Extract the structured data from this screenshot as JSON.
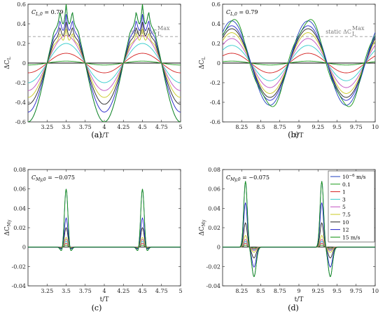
{
  "chart_data": [
    {
      "type": "line",
      "panel_label": "(a)",
      "annotation": "C_{L,0} = 0.79",
      "annotation_text": "C",
      "annotation_sub": "L,0",
      "annotation_value": " = 0.79",
      "ref_label": "static ΔC",
      "ref_sup": "Max",
      "ref_sub": "L",
      "ref_y": 0.27,
      "xlabel": "t/T",
      "ylabel": "ΔC",
      "ylabel_sub": "L",
      "xlim": [
        3.0,
        5.0
      ],
      "ylim": [
        -0.6,
        0.6
      ],
      "xticks": [
        3.25,
        3.5,
        3.75,
        4,
        4.25,
        4.5,
        4.75,
        5
      ],
      "xticklabels": [
        "3.25",
        "3.5",
        "3.75",
        "4",
        "4.25",
        "4.5",
        "4.75",
        "5"
      ],
      "yticks": [
        -0.6,
        -0.4,
        -0.2,
        0,
        0.2,
        0.4,
        0.6
      ],
      "yticklabels": [
        "-0.6",
        "-0.4",
        "-0.2",
        "0",
        "0.2",
        "0.4",
        "0.6"
      ],
      "series_amplitudes": [
        0.0,
        0.6,
        0.02,
        0.1,
        0.2,
        0.28,
        0.35,
        0.42,
        0.5,
        0.6
      ],
      "phase_center": 3.5,
      "ripple": true
    },
    {
      "type": "line",
      "panel_label": "(b)",
      "annotation_text": "C",
      "annotation_sub": "L,0",
      "annotation_value": " = 0.79",
      "ref_label": "static ΔC",
      "ref_sup": "Max",
      "ref_sub": "L",
      "ref_y": 0.27,
      "xlabel": "",
      "ylabel": "ΔC",
      "ylabel_sub": "L",
      "xlim": [
        8.0,
        10.0
      ],
      "ylim": [
        -0.6,
        0.6
      ],
      "xticks": [
        8.25,
        8.5,
        8.75,
        9,
        9.25,
        9.5,
        9.75,
        10
      ],
      "xticklabels": [
        "8.25",
        "8.5",
        "8.75",
        "9",
        "9.25",
        "9.5",
        "9.75",
        "10"
      ],
      "yticks": [
        -0.6,
        -0.4,
        -0.2,
        0,
        0.2,
        0.4,
        0.6
      ],
      "yticklabels": [
        "-0.6",
        "-0.4",
        "-0.2",
        "0",
        "0.2",
        "0.4",
        "0.6"
      ],
      "series_amplitudes": [
        0.0,
        0.43,
        0.02,
        0.1,
        0.18,
        0.25,
        0.31,
        0.35,
        0.38,
        0.43
      ],
      "phase_center": 8.12,
      "ripple": false
    },
    {
      "type": "line",
      "panel_label": "(c)",
      "annotation_text": "C",
      "annotation_sub": "My,0",
      "annotation_value": " = −0.075",
      "xlabel": "t/T",
      "ylabel": "ΔC",
      "ylabel_sub": "My",
      "xlim": [
        3.0,
        5.0
      ],
      "ylim": [
        -0.04,
        0.08
      ],
      "xticks": [
        3.25,
        3.5,
        3.75,
        4,
        4.25,
        4.5,
        4.75,
        5
      ],
      "xticklabels": [
        "3.25",
        "3.5",
        "3.75",
        "4",
        "4.25",
        "4.5",
        "4.75",
        "5"
      ],
      "yticks": [
        -0.04,
        -0.02,
        0,
        0.02,
        0.04,
        0.06,
        0.08
      ],
      "yticklabels": [
        "-0.04",
        "-0.02",
        "0",
        "0.02",
        "0.04",
        "0.06",
        "0.08"
      ],
      "series_amplitudes": [
        0.0,
        0.06,
        0.002,
        0.004,
        0.006,
        0.008,
        0.01,
        0.02,
        0.03,
        0.06
      ],
      "phase_center": 3.5,
      "ripple": true
    },
    {
      "type": "line",
      "panel_label": "(d)",
      "annotation_text": "C",
      "annotation_sub": "My,0",
      "annotation_value": " = −0.075",
      "xlabel": "t/T",
      "ylabel": "ΔC",
      "ylabel_sub": "My",
      "xlim": [
        8.0,
        10.0
      ],
      "ylim": [
        -0.04,
        0.08
      ],
      "xticks": [
        8.25,
        8.5,
        8.75,
        9,
        9.25,
        9.5,
        9.75,
        10
      ],
      "xticklabels": [
        "8.25",
        "8.5",
        "8.75",
        "9",
        "9.25",
        "9.5",
        "9.75",
        "10"
      ],
      "yticks": [
        -0.04,
        -0.02,
        0,
        0.02,
        0.04,
        0.06,
        0.08
      ],
      "yticklabels": [
        "-0.04",
        "-0.02",
        "0",
        "0.02",
        "0.04",
        "0.06",
        "0.08"
      ],
      "series_amplitudes": [
        0.0,
        0.068,
        0.002,
        0.004,
        0.006,
        0.008,
        0.012,
        0.025,
        0.046,
        0.068
      ],
      "phase_center": 8.3,
      "ripple": false
    }
  ],
  "legend": {
    "entries": [
      "10",
      "0.1",
      "1",
      "3",
      "5",
      "7.5",
      "10",
      "12",
      "15 m/s"
    ],
    "first_sup": "−6",
    "first_unit": " m/s",
    "colors": [
      "#1f3fbf",
      "#1a9a1a",
      "#d42020",
      "#33cccc",
      "#c050c0",
      "#c8c820",
      "#222222",
      "#2020c8",
      "#139313"
    ]
  }
}
